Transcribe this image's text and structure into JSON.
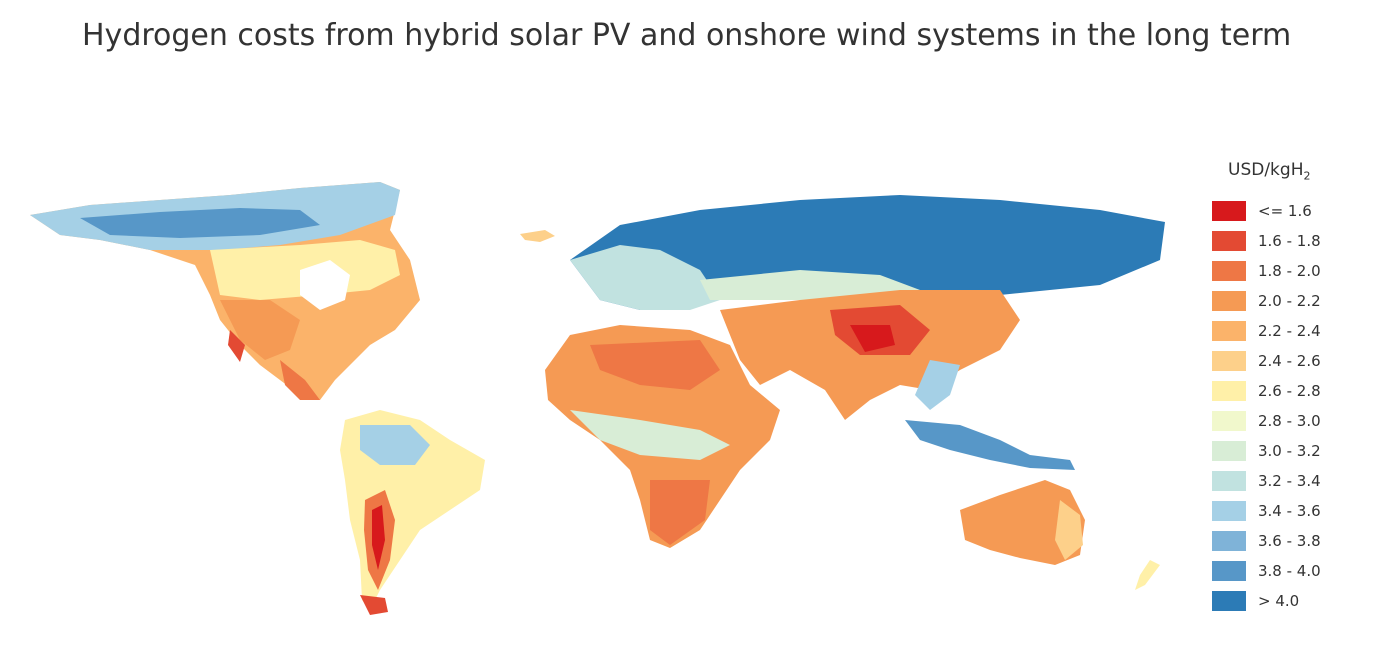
{
  "title": "Hydrogen costs from hybrid solar PV and onshore wind systems in the long term",
  "legend": {
    "title_main": "USD/kgH",
    "title_sub": "2",
    "items": [
      {
        "label": "<= 1.6",
        "color": "#d7191c"
      },
      {
        "label": "1.6 - 1.8",
        "color": "#e34a33"
      },
      {
        "label": "1.8 - 2.0",
        "color": "#ee7745"
      },
      {
        "label": "2.0 - 2.2",
        "color": "#f59a54"
      },
      {
        "label": "2.2 - 2.4",
        "color": "#fbb36a"
      },
      {
        "label": "2.4 - 2.6",
        "color": "#fdd08a"
      },
      {
        "label": "2.6 - 2.8",
        "color": "#fff0a8"
      },
      {
        "label": "2.8 - 3.0",
        "color": "#f1f8cc"
      },
      {
        "label": "3.0 - 3.2",
        "color": "#d8edd6"
      },
      {
        "label": "3.2 - 3.4",
        "color": "#c1e2e0"
      },
      {
        "label": "3.4 - 3.6",
        "color": "#a5d0e6"
      },
      {
        "label": "3.6 - 3.8",
        "color": "#7fb3d8"
      },
      {
        "label": "3.8 - 4.0",
        "color": "#5797c8"
      },
      {
        "label": "> 4.0",
        "color": "#2c7bb6"
      }
    ]
  }
}
